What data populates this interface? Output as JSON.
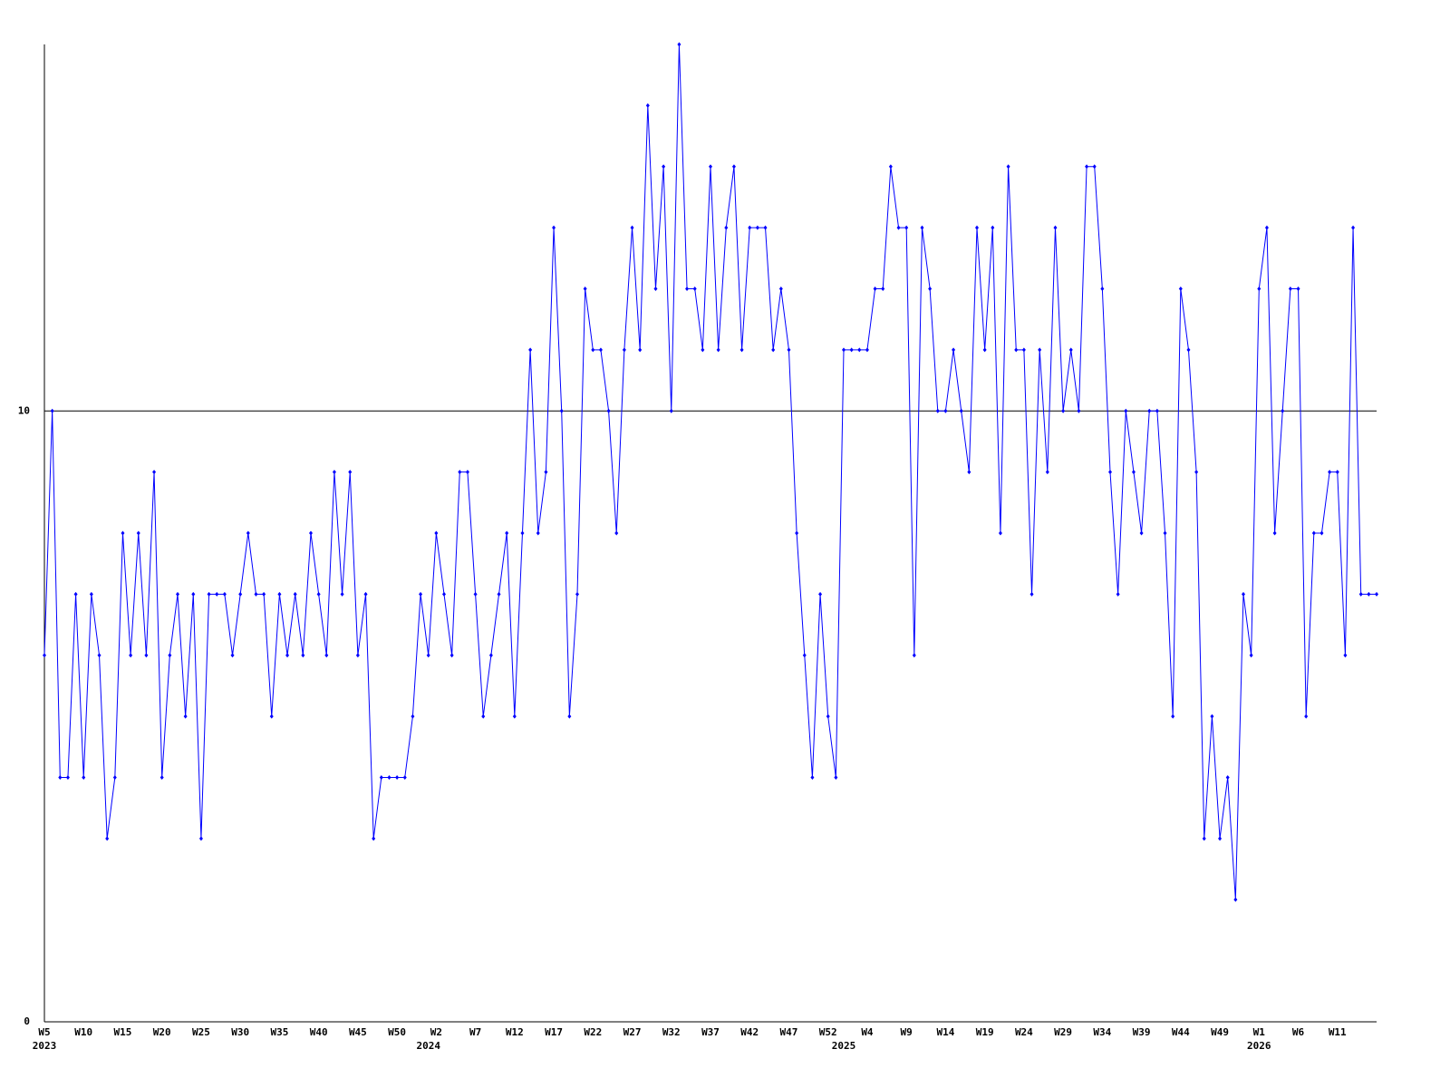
{
  "chart_data": {
    "type": "line",
    "color": "#0000ff",
    "ylim": [
      0,
      16
    ],
    "yticks": [
      0,
      10
    ],
    "grid": true,
    "categories": [
      "W5",
      null,
      null,
      null,
      null,
      "W10",
      null,
      null,
      null,
      null,
      "W15",
      null,
      null,
      null,
      null,
      "W20",
      null,
      null,
      null,
      null,
      "W25",
      null,
      null,
      null,
      null,
      "W30",
      null,
      null,
      null,
      null,
      "W35",
      null,
      null,
      null,
      null,
      "W40",
      null,
      null,
      null,
      null,
      "W45",
      null,
      null,
      null,
      null,
      "W50",
      null,
      null,
      null,
      null,
      "W2",
      null,
      null,
      null,
      null,
      "W7",
      null,
      null,
      null,
      null,
      "W12",
      null,
      null,
      null,
      null,
      "W17",
      null,
      null,
      null,
      null,
      "W22",
      null,
      null,
      null,
      null,
      "W27",
      null,
      null,
      null,
      null,
      "W32",
      null,
      null,
      null,
      null,
      "W37",
      null,
      null,
      null,
      null,
      "W42",
      null,
      null,
      null,
      null,
      "W47",
      null,
      null,
      null,
      null,
      "W52",
      null,
      null,
      null,
      null,
      "W4",
      null,
      null,
      null,
      null,
      "W9",
      null,
      null,
      null,
      null,
      "W14",
      null,
      null,
      null,
      null,
      "W19",
      null,
      null,
      null,
      null,
      "W24",
      null,
      null,
      null,
      null,
      "W29",
      null,
      null,
      null,
      null,
      "W34",
      null,
      null,
      null,
      null,
      "W39",
      null,
      null,
      null,
      null,
      "W44",
      null,
      null,
      null,
      null,
      "W49",
      null,
      null,
      null,
      null,
      "W1",
      null,
      null,
      null,
      null,
      "W6",
      null,
      null,
      null,
      null,
      "W11",
      null,
      null,
      null,
      null,
      null
    ],
    "year_labels": [
      "2023",
      null,
      null,
      null,
      null,
      null,
      null,
      null,
      null,
      null,
      null,
      null,
      null,
      null,
      null,
      null,
      null,
      null,
      null,
      null,
      null,
      null,
      null,
      null,
      null,
      null,
      null,
      null,
      null,
      null,
      null,
      null,
      null,
      null,
      null,
      null,
      null,
      null,
      null,
      null,
      null,
      null,
      null,
      null,
      null,
      null,
      null,
      null,
      null,
      "2024",
      null,
      null,
      null,
      null,
      null,
      null,
      null,
      null,
      null,
      null,
      null,
      null,
      null,
      null,
      null,
      null,
      null,
      null,
      null,
      null,
      null,
      null,
      null,
      null,
      null,
      null,
      null,
      null,
      null,
      null,
      null,
      null,
      null,
      null,
      null,
      null,
      null,
      null,
      null,
      null,
      null,
      null,
      null,
      null,
      null,
      null,
      null,
      null,
      null,
      null,
      null,
      null,
      "2025",
      null,
      null,
      null,
      null,
      null,
      null,
      null,
      null,
      null,
      null,
      null,
      null,
      null,
      null,
      null,
      null,
      null,
      null,
      null,
      null,
      null,
      null,
      null,
      null,
      null,
      null,
      null,
      null,
      null,
      null,
      null,
      null,
      null,
      null,
      null,
      null,
      null,
      null,
      null,
      null,
      null,
      null,
      null,
      null,
      null,
      null,
      null,
      null,
      null,
      null,
      null,
      null,
      "2026",
      null,
      null,
      null,
      null,
      null,
      null,
      null,
      null,
      null,
      null,
      null,
      null,
      null,
      null,
      null
    ],
    "values": [
      6,
      10,
      4,
      4,
      7,
      4,
      7,
      6,
      3,
      4,
      8,
      6,
      8,
      6,
      9,
      4,
      6,
      7,
      5,
      7,
      3,
      7,
      7,
      7,
      6,
      7,
      8,
      7,
      7,
      5,
      7,
      6,
      7,
      6,
      8,
      7,
      6,
      9,
      7,
      9,
      6,
      7,
      3,
      4,
      4,
      4,
      4,
      5,
      7,
      6,
      8,
      7,
      6,
      9,
      9,
      7,
      5,
      6,
      7,
      8,
      5,
      8,
      11,
      8,
      9,
      13,
      10,
      5,
      7,
      12,
      11,
      11,
      10,
      8,
      11,
      13,
      11,
      15,
      12,
      14,
      10,
      16,
      12,
      12,
      11,
      14,
      11,
      13,
      14,
      11,
      13,
      13,
      13,
      11,
      12,
      11,
      8,
      6,
      4,
      7,
      5,
      4,
      11,
      11,
      11,
      11,
      12,
      12,
      14,
      13,
      13,
      6,
      13,
      12,
      10,
      10,
      11,
      10,
      9,
      13,
      11,
      13,
      8,
      14,
      11,
      11,
      7,
      11,
      9,
      13,
      10,
      11,
      10,
      14,
      14,
      12,
      9,
      7,
      10,
      9,
      8,
      10,
      10,
      8,
      5,
      12,
      11,
      9,
      3,
      5,
      3,
      4,
      2,
      7,
      6,
      12,
      13,
      8,
      10,
      12,
      12,
      5,
      8,
      8,
      9,
      9,
      6,
      13,
      7,
      7,
      7
    ]
  }
}
